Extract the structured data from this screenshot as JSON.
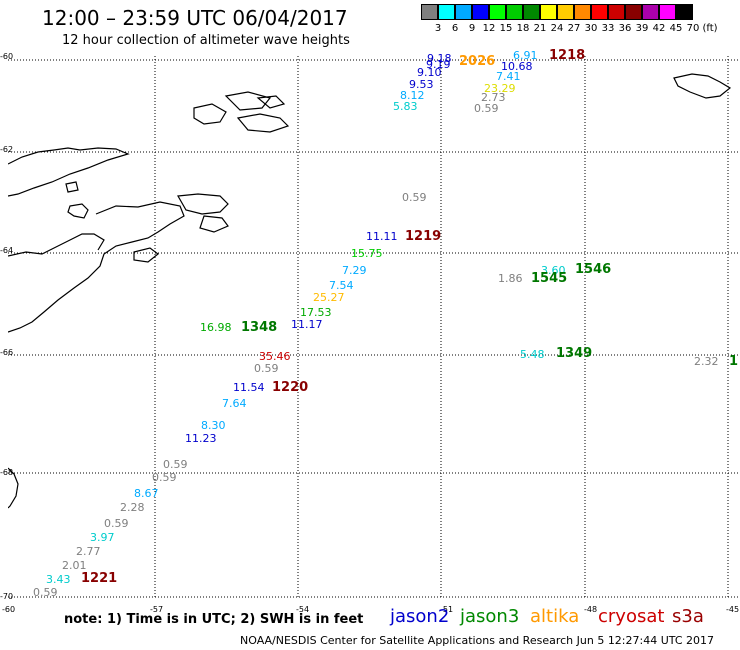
{
  "header": {
    "title": "12:00 – 23:59 UTC 06/04/2017",
    "subtitle": "12 hour collection of altimeter wave heights"
  },
  "scale": {
    "labels": [
      "3",
      "6",
      "9",
      "12",
      "15",
      "18",
      "21",
      "24",
      "27",
      "30",
      "33",
      "36",
      "39",
      "42",
      "45",
      "70",
      "(ft)"
    ],
    "colors": [
      "#7f7f7f",
      "#00ffff",
      "#00aaff",
      "#0000ff",
      "#00ff00",
      "#00cc00",
      "#008800",
      "#ffff00",
      "#ffcc00",
      "#ff8800",
      "#ff0000",
      "#cc0000",
      "#880000",
      "#aa00aa",
      "#ff00ff",
      "#000000"
    ]
  },
  "map": {
    "lat_labels": [
      "-60",
      "-62",
      "-64",
      "-66",
      "-68",
      "-70"
    ],
    "lon_labels": [
      "-60",
      "-57",
      "-54",
      "-51",
      "-48",
      "-45"
    ],
    "lat_range": [
      -70,
      -60
    ],
    "lon_range": [
      -60,
      -45
    ],
    "grid": true
  },
  "observations": [
    {
      "text": "9.18",
      "color": "#0000cc"
    },
    {
      "text": "9.19",
      "color": "#0000cc"
    },
    {
      "text": "9.10",
      "color": "#0000cc"
    },
    {
      "text": "9.53",
      "color": "#0000cc"
    },
    {
      "text": "8.12",
      "color": "#00aaff"
    },
    {
      "text": "5.83",
      "color": "#00cccc"
    },
    {
      "text": "6.91",
      "color": "#00aaff"
    },
    {
      "text": "10.68",
      "color": "#0000cc"
    },
    {
      "text": "7.41",
      "color": "#00aaff"
    },
    {
      "text": "23.29",
      "color": "#dddd00"
    },
    {
      "text": "2.73",
      "color": "#7f7f7f"
    },
    {
      "text": "0.59",
      "color": "#7f7f7f"
    },
    {
      "text": "0.59",
      "color": "#7f7f7f"
    },
    {
      "text": "11.11",
      "color": "#0000cc"
    },
    {
      "text": "15.75",
      "color": "#00cc00"
    },
    {
      "text": "7.29",
      "color": "#00aaff"
    },
    {
      "text": "7.54",
      "color": "#00aaff"
    },
    {
      "text": "25.27",
      "color": "#ffbb00"
    },
    {
      "text": "17.53",
      "color": "#00aa00"
    },
    {
      "text": "11.17",
      "color": "#0000cc"
    },
    {
      "text": "16.98",
      "color": "#00aa00"
    },
    {
      "text": "35.46",
      "color": "#cc0000"
    },
    {
      "text": "0.59",
      "color": "#7f7f7f"
    },
    {
      "text": "11.54",
      "color": "#0000cc"
    },
    {
      "text": "7.64",
      "color": "#00aaff"
    },
    {
      "text": "8.30",
      "color": "#00aaff"
    },
    {
      "text": "11.23",
      "color": "#0000cc"
    },
    {
      "text": "0.59",
      "color": "#7f7f7f"
    },
    {
      "text": "0.59",
      "color": "#7f7f7f"
    },
    {
      "text": "8.67",
      "color": "#00aaff"
    },
    {
      "text": "2.28",
      "color": "#7f7f7f"
    },
    {
      "text": "0.59",
      "color": "#7f7f7f"
    },
    {
      "text": "3.97",
      "color": "#00cccc"
    },
    {
      "text": "2.77",
      "color": "#7f7f7f"
    },
    {
      "text": "2.01",
      "color": "#7f7f7f"
    },
    {
      "text": "3.43",
      "color": "#00cccc"
    },
    {
      "text": "0.59",
      "color": "#7f7f7f"
    },
    {
      "text": "1.86",
      "color": "#7f7f7f"
    },
    {
      "text": "3.60",
      "color": "#00cccc"
    },
    {
      "text": "5.48",
      "color": "#00cccc"
    },
    {
      "text": "2.32",
      "color": "#7f7f7f"
    }
  ],
  "times": [
    {
      "text": "2026",
      "color": "#ff9900"
    },
    {
      "text": "1218",
      "color": "#880000"
    },
    {
      "text": "1219",
      "color": "#880000"
    },
    {
      "text": "1348",
      "color": "#007700"
    },
    {
      "text": "1220",
      "color": "#880000"
    },
    {
      "text": "1221",
      "color": "#880000"
    },
    {
      "text": "1545",
      "color": "#007700"
    },
    {
      "text": "1546",
      "color": "#007700"
    },
    {
      "text": "1349",
      "color": "#007700"
    },
    {
      "text": "1",
      "color": "#007700"
    }
  ],
  "note": "note: 1) Time is in UTC; 2) SWH is in feet",
  "satellites": [
    {
      "name": "jason2",
      "color": "#0000cc"
    },
    {
      "name": "jason3",
      "color": "#008800"
    },
    {
      "name": "altika",
      "color": "#ff9900"
    },
    {
      "name": "cryosat",
      "color": "#cc0000"
    },
    {
      "name": "s3a",
      "color": "#990000"
    }
  ],
  "footer": "NOAA/NESDIS Center for Satellite Applications and Research   Jun  5 12:27:44 UTC 2017"
}
